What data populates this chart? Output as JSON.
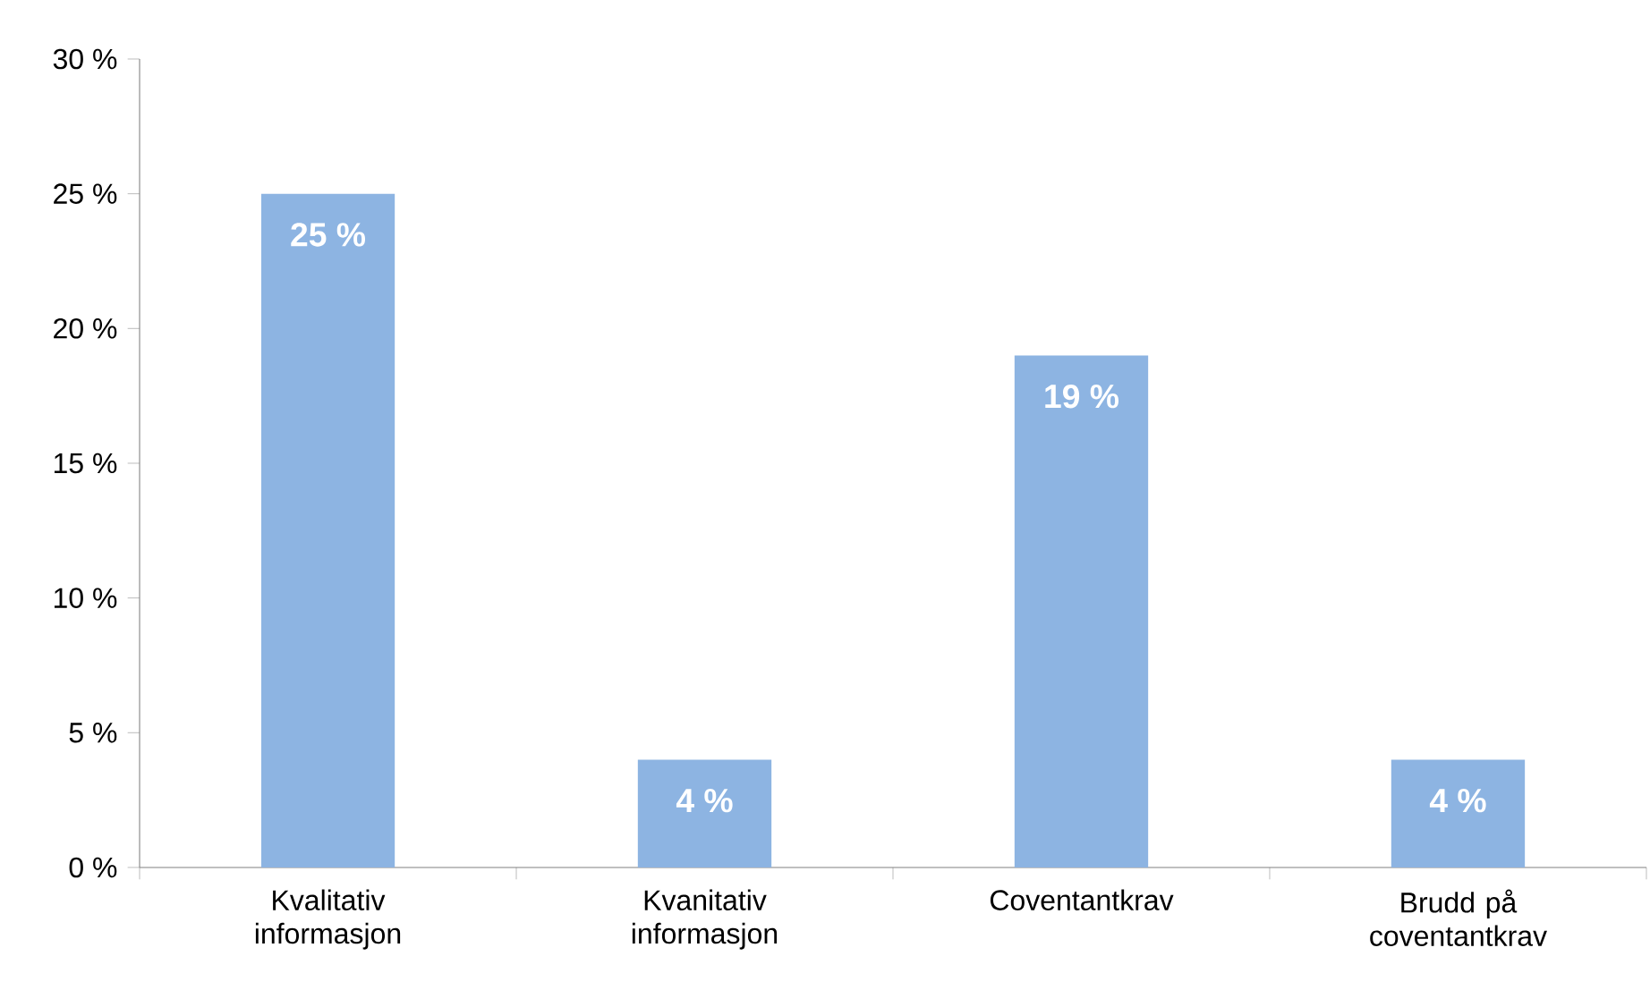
{
  "chart_data": {
    "type": "bar",
    "categories": [
      "Kvalitativ informasjon",
      "Kvanitativ informasjon",
      "Coventantkrav",
      "Brudd på coventantkrav"
    ],
    "values": [
      25,
      4,
      19,
      4
    ],
    "value_labels": [
      "25 %",
      "4 %",
      "19 %",
      "4 %"
    ],
    "color": "#8db4e2",
    "ylim": [
      0,
      30
    ],
    "yticks": [
      {
        "value": 0,
        "label": "0 %"
      },
      {
        "value": 5,
        "label": "5 %"
      },
      {
        "value": 10,
        "label": "10 %"
      },
      {
        "value": 15,
        "label": "15 %"
      },
      {
        "value": 20,
        "label": "20 %"
      },
      {
        "value": 25,
        "label": "25 %"
      },
      {
        "value": 30,
        "label": "30 %"
      }
    ]
  }
}
